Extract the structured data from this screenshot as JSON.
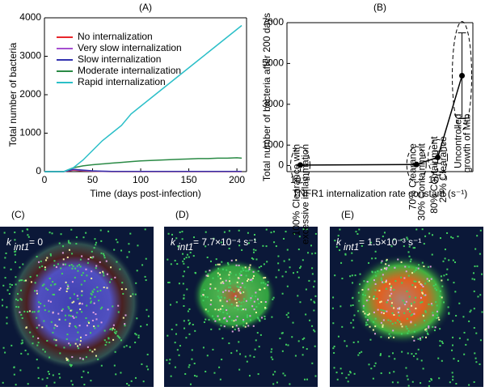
{
  "chart_data": [
    {
      "type": "line",
      "panel": "(A)",
      "y_label": "Total number of bacteria",
      "x_label": "Time (days post-infection)",
      "x": [
        0,
        10,
        20,
        30,
        40,
        50,
        60,
        70,
        80,
        90,
        100,
        110,
        120,
        130,
        140,
        150,
        160,
        170,
        180,
        190,
        200,
        205
      ],
      "xlim": [
        0,
        210
      ],
      "xticks": [
        0,
        50,
        100,
        150,
        200
      ],
      "ylim": [
        0,
        4000
      ],
      "yticks": [
        0,
        1000,
        2000,
        3000,
        4000
      ],
      "series": [
        {
          "name": "No internalization",
          "color": "#e8262b",
          "values": [
            0,
            0,
            0,
            40,
            20,
            10,
            5,
            0,
            0,
            0,
            0,
            0,
            0,
            0,
            0,
            0,
            0,
            0,
            0,
            0,
            0,
            0
          ]
        },
        {
          "name": "Very slow internalization",
          "color": "#a64fd0",
          "values": [
            0,
            0,
            0,
            50,
            30,
            15,
            10,
            5,
            5,
            5,
            5,
            5,
            5,
            5,
            5,
            5,
            5,
            5,
            5,
            5,
            5,
            5
          ]
        },
        {
          "name": "Slow internalization",
          "color": "#3333b0",
          "values": [
            0,
            0,
            0,
            60,
            40,
            20,
            10,
            5,
            5,
            5,
            5,
            5,
            5,
            5,
            5,
            5,
            5,
            5,
            5,
            5,
            5,
            5
          ]
        },
        {
          "name": "Moderate internalization",
          "color": "#2a8a45",
          "values": [
            0,
            0,
            0,
            100,
            150,
            180,
            200,
            220,
            240,
            260,
            280,
            290,
            300,
            310,
            320,
            330,
            340,
            340,
            350,
            350,
            360,
            350
          ]
        },
        {
          "name": "Rapid internalization",
          "color": "#2bbfc8",
          "values": [
            0,
            0,
            0,
            100,
            300,
            550,
            800,
            1000,
            1200,
            1500,
            1700,
            1900,
            2100,
            2300,
            2500,
            2700,
            2900,
            3100,
            3300,
            3500,
            3700,
            3800
          ]
        }
      ]
    },
    {
      "type": "errorbar",
      "panel": "(B)",
      "y_label": "Total number of bacteria after 200 days",
      "x_label": "TNFR1 internalization rate constant (s⁻¹)",
      "log_x": true,
      "x": [
        0.0001,
        0.0007,
        0.001,
        0.0015
      ],
      "values": [
        20,
        50,
        400,
        4400
      ],
      "errors": [
        30,
        40,
        300,
        2100
      ],
      "xlim": [
        8e-05,
        0.0018
      ],
      "xticks": [
        {
          "value": 0.0001,
          "label": "10⁻⁴"
        },
        {
          "value": 0.001,
          "label": "10⁻³"
        }
      ],
      "ylim": [
        -300,
        7000
      ],
      "yticks": [
        0,
        1000,
        3000,
        5000,
        7000
      ],
      "color": "#000000",
      "annotations": [
        [
          "100% Clearance with",
          "excessive inflammation"
        ],
        [
          "70% Clearance",
          "30% Containment"
        ],
        [
          "80% Containment",
          "20% Clearance"
        ],
        [
          "Uncontrolled",
          "growth of Mtb"
        ]
      ]
    }
  ],
  "image_panels": [
    {
      "panel": "(C)",
      "k": "k",
      "sub": "int1",
      "value": " = 0"
    },
    {
      "panel": "(D)",
      "k": "k",
      "sub": "int1",
      "value": " = 7.7×10⁻⁴ s⁻¹"
    },
    {
      "panel": "(E)",
      "k": "k",
      "sub": "int1",
      "value": " = 1.5×10⁻³ s⁻¹"
    }
  ]
}
